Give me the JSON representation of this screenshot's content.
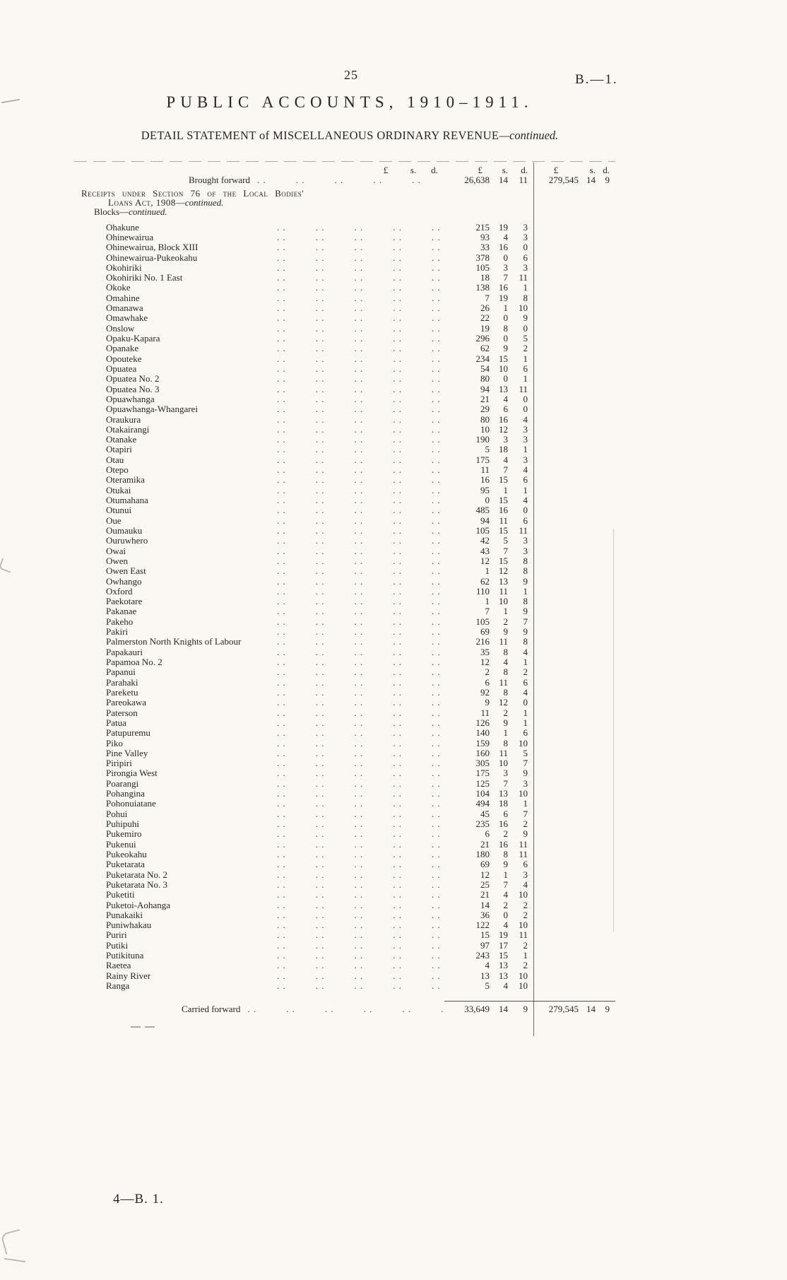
{
  "page": {
    "page_number": "25",
    "doc_ref": "B.—1.",
    "title": "PUBLIC ACCOUNTS, 1910–1911.",
    "subtitle": {
      "main": "DETAIL STATEMENT of MISCELLANEOUS ORDINARY REVENUE",
      "dash": "—",
      "continued": "continued."
    },
    "footer": "4—B. 1."
  },
  "table": {
    "currency_header": {
      "pound": "£",
      "shillings": "s.",
      "pence": "d."
    },
    "brought_forward": {
      "label": "Brought forward",
      "total_col2": {
        "pounds": "26,638",
        "s": "14",
        "d": "11"
      },
      "total_col3": {
        "pounds": "279,545",
        "s": "14",
        "d": "9"
      }
    },
    "section": {
      "line1": "Receipts under Section 76 of the Local Bodies'",
      "line2_main": "Loans Act, 1908",
      "line2_dash": "—",
      "line2_continued": "continued.",
      "line3_main": "Blocks",
      "line3_dash": "—",
      "line3_continued": "continued."
    },
    "rows": [
      {
        "name": "Ohakune",
        "pounds": "215",
        "s": "19",
        "d": "3"
      },
      {
        "name": "Ohinewairua",
        "pounds": "93",
        "s": "4",
        "d": "3"
      },
      {
        "name": "Ohinewairua, Block XIII",
        "pounds": "33",
        "s": "16",
        "d": "0"
      },
      {
        "name": "Ohinewairua-Pukeokahu",
        "pounds": "378",
        "s": "0",
        "d": "6"
      },
      {
        "name": "Okohiriki",
        "pounds": "105",
        "s": "3",
        "d": "3"
      },
      {
        "name": "Okohiriki No. 1 East",
        "pounds": "18",
        "s": "7",
        "d": "11"
      },
      {
        "name": "Okoke",
        "pounds": "138",
        "s": "16",
        "d": "1"
      },
      {
        "name": "Omahine",
        "pounds": "7",
        "s": "19",
        "d": "8"
      },
      {
        "name": "Omanawa",
        "pounds": "26",
        "s": "1",
        "d": "10"
      },
      {
        "name": "Omawhake",
        "pounds": "22",
        "s": "0",
        "d": "9"
      },
      {
        "name": "Onslow",
        "pounds": "19",
        "s": "8",
        "d": "0"
      },
      {
        "name": "Opaku-Kapara",
        "pounds": "296",
        "s": "0",
        "d": "5"
      },
      {
        "name": "Opanake",
        "pounds": "62",
        "s": "9",
        "d": "2"
      },
      {
        "name": "Opouteke",
        "pounds": "234",
        "s": "15",
        "d": "1"
      },
      {
        "name": "Opuatea",
        "pounds": "54",
        "s": "10",
        "d": "6"
      },
      {
        "name": "Opuatea No. 2",
        "pounds": "80",
        "s": "0",
        "d": "1"
      },
      {
        "name": "Opuatea No. 3",
        "pounds": "94",
        "s": "13",
        "d": "11"
      },
      {
        "name": "Opuawhanga",
        "pounds": "21",
        "s": "4",
        "d": "0"
      },
      {
        "name": "Opuawhanga-Whangarei",
        "pounds": "29",
        "s": "6",
        "d": "0"
      },
      {
        "name": "Oraukura",
        "pounds": "80",
        "s": "16",
        "d": "4"
      },
      {
        "name": "Otakairangi",
        "pounds": "10",
        "s": "12",
        "d": "3"
      },
      {
        "name": "Otanake",
        "pounds": "190",
        "s": "3",
        "d": "3"
      },
      {
        "name": "Otapiri",
        "pounds": "5",
        "s": "18",
        "d": "1"
      },
      {
        "name": "Otau",
        "pounds": "175",
        "s": "4",
        "d": "3"
      },
      {
        "name": "Otepo",
        "pounds": "11",
        "s": "7",
        "d": "4"
      },
      {
        "name": "Oteramika",
        "pounds": "16",
        "s": "15",
        "d": "6"
      },
      {
        "name": "Otukai",
        "pounds": "95",
        "s": "1",
        "d": "1"
      },
      {
        "name": "Otumahana",
        "pounds": "0",
        "s": "15",
        "d": "4"
      },
      {
        "name": "Otunui",
        "pounds": "485",
        "s": "16",
        "d": "0"
      },
      {
        "name": "Oue",
        "pounds": "94",
        "s": "11",
        "d": "6"
      },
      {
        "name": "Oumauku",
        "pounds": "105",
        "s": "15",
        "d": "11"
      },
      {
        "name": "Ouruwhero",
        "pounds": "42",
        "s": "5",
        "d": "3"
      },
      {
        "name": "Owai",
        "pounds": "43",
        "s": "7",
        "d": "3"
      },
      {
        "name": "Owen",
        "pounds": "12",
        "s": "15",
        "d": "8"
      },
      {
        "name": "Owen East",
        "pounds": "1",
        "s": "12",
        "d": "8"
      },
      {
        "name": "Owhango",
        "pounds": "62",
        "s": "13",
        "d": "9"
      },
      {
        "name": "Oxford",
        "pounds": "110",
        "s": "11",
        "d": "1"
      },
      {
        "name": "Paekotare",
        "pounds": "1",
        "s": "10",
        "d": "8"
      },
      {
        "name": "Pakanae",
        "pounds": "7",
        "s": "1",
        "d": "9"
      },
      {
        "name": "Pakeho",
        "pounds": "105",
        "s": "2",
        "d": "7"
      },
      {
        "name": "Pakiri",
        "pounds": "69",
        "s": "9",
        "d": "9"
      },
      {
        "name": "Palmerston North Knights of Labour",
        "pounds": "216",
        "s": "11",
        "d": "8"
      },
      {
        "name": "Papakauri",
        "pounds": "35",
        "s": "8",
        "d": "4"
      },
      {
        "name": "Papamoa No. 2",
        "pounds": "12",
        "s": "4",
        "d": "1"
      },
      {
        "name": "Papanui",
        "pounds": "2",
        "s": "8",
        "d": "2"
      },
      {
        "name": "Parahaki",
        "pounds": "6",
        "s": "11",
        "d": "6"
      },
      {
        "name": "Pareketu",
        "pounds": "92",
        "s": "8",
        "d": "4"
      },
      {
        "name": "Pareokawa",
        "pounds": "9",
        "s": "12",
        "d": "0"
      },
      {
        "name": "Paterson",
        "pounds": "11",
        "s": "2",
        "d": "1"
      },
      {
        "name": "Patua",
        "pounds": "126",
        "s": "9",
        "d": "1"
      },
      {
        "name": "Patupuremu",
        "pounds": "140",
        "s": "1",
        "d": "6"
      },
      {
        "name": "Piko",
        "pounds": "159",
        "s": "8",
        "d": "10"
      },
      {
        "name": "Pine Valley",
        "pounds": "160",
        "s": "11",
        "d": "5"
      },
      {
        "name": "Piripiri",
        "pounds": "305",
        "s": "10",
        "d": "7"
      },
      {
        "name": "Pirongia West",
        "pounds": "175",
        "s": "3",
        "d": "9"
      },
      {
        "name": "Poarangi",
        "pounds": "125",
        "s": "7",
        "d": "3"
      },
      {
        "name": "Pohangina",
        "pounds": "104",
        "s": "13",
        "d": "10"
      },
      {
        "name": "Pohonuiatane",
        "pounds": "494",
        "s": "18",
        "d": "1"
      },
      {
        "name": "Pohui",
        "pounds": "45",
        "s": "6",
        "d": "7"
      },
      {
        "name": "Puhipuhi",
        "pounds": "235",
        "s": "16",
        "d": "2"
      },
      {
        "name": "Pukemiro",
        "pounds": "6",
        "s": "2",
        "d": "9"
      },
      {
        "name": "Pukenui",
        "pounds": "21",
        "s": "16",
        "d": "11"
      },
      {
        "name": "Pukeokahu",
        "pounds": "180",
        "s": "8",
        "d": "11"
      },
      {
        "name": "Puketarata",
        "pounds": "69",
        "s": "9",
        "d": "6"
      },
      {
        "name": "Puketarata No. 2",
        "pounds": "12",
        "s": "1",
        "d": "3"
      },
      {
        "name": "Puketarata No. 3",
        "pounds": "25",
        "s": "7",
        "d": "4"
      },
      {
        "name": "Puketiti",
        "pounds": "21",
        "s": "4",
        "d": "10"
      },
      {
        "name": "Puketoi-Aohanga",
        "pounds": "14",
        "s": "2",
        "d": "2"
      },
      {
        "name": "Punakaiki",
        "pounds": "36",
        "s": "0",
        "d": "2"
      },
      {
        "name": "Puniwhakau",
        "pounds": "122",
        "s": "4",
        "d": "10"
      },
      {
        "name": "Puriri",
        "pounds": "15",
        "s": "19",
        "d": "11"
      },
      {
        "name": "Putiki",
        "pounds": "97",
        "s": "17",
        "d": "2"
      },
      {
        "name": "Putikituna",
        "pounds": "243",
        "s": "15",
        "d": "1"
      },
      {
        "name": "Raetea",
        "pounds": "4",
        "s": "13",
        "d": "2"
      },
      {
        "name": "Rainy River",
        "pounds": "13",
        "s": "13",
        "d": "10"
      },
      {
        "name": "Ranga",
        "pounds": "5",
        "s": "4",
        "d": "10"
      }
    ],
    "carried_forward": {
      "label": "Carried forward",
      "total_col2": {
        "pounds": "33,649",
        "s": "14",
        "d": "9"
      },
      "total_col3": {
        "pounds": "279,545",
        "s": "14",
        "d": "9"
      }
    }
  }
}
